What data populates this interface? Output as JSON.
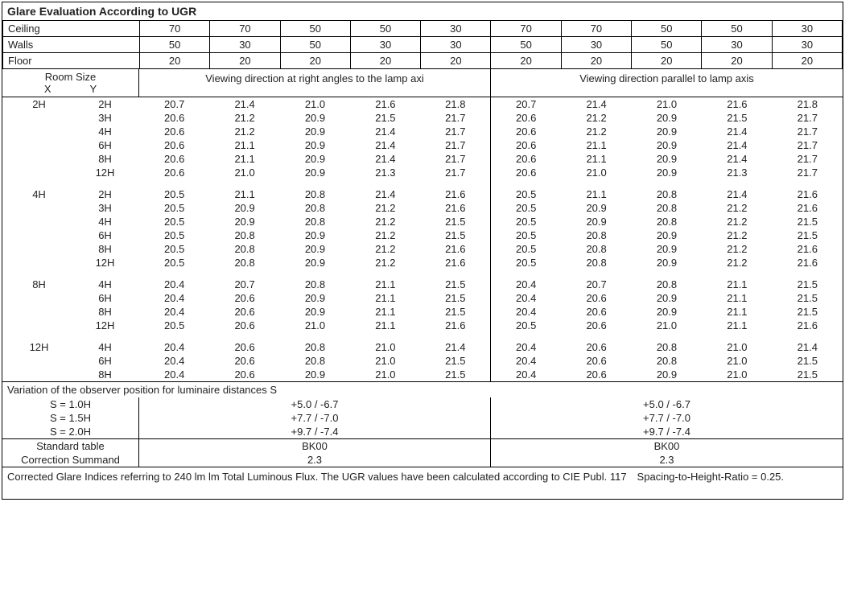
{
  "title": "Glare Evaluation According to UGR",
  "headers": {
    "rows": [
      {
        "label": "Ceiling",
        "vals": [
          "70",
          "70",
          "50",
          "50",
          "30",
          "70",
          "70",
          "50",
          "50",
          "30"
        ]
      },
      {
        "label": "Walls",
        "vals": [
          "50",
          "30",
          "50",
          "30",
          "30",
          "50",
          "30",
          "50",
          "30",
          "30"
        ]
      },
      {
        "label": "Floor",
        "vals": [
          "20",
          "20",
          "20",
          "20",
          "20",
          "20",
          "20",
          "20",
          "20",
          "20"
        ]
      }
    ]
  },
  "subheader": {
    "room_size_label": "Room Size",
    "x_label": "X",
    "y_label": "Y",
    "view1": "Viewing direction at right angles to the lamp axi",
    "view2": "Viewing direction parallel to lamp axis"
  },
  "groups": [
    {
      "x": "2H",
      "rows": [
        {
          "y": "2H",
          "a": [
            "20.7",
            "21.4",
            "21.0",
            "21.6",
            "21.8"
          ],
          "b": [
            "20.7",
            "21.4",
            "21.0",
            "21.6",
            "21.8"
          ]
        },
        {
          "y": "3H",
          "a": [
            "20.6",
            "21.2",
            "20.9",
            "21.5",
            "21.7"
          ],
          "b": [
            "20.6",
            "21.2",
            "20.9",
            "21.5",
            "21.7"
          ]
        },
        {
          "y": "4H",
          "a": [
            "20.6",
            "21.2",
            "20.9",
            "21.4",
            "21.7"
          ],
          "b": [
            "20.6",
            "21.2",
            "20.9",
            "21.4",
            "21.7"
          ]
        },
        {
          "y": "6H",
          "a": [
            "20.6",
            "21.1",
            "20.9",
            "21.4",
            "21.7"
          ],
          "b": [
            "20.6",
            "21.1",
            "20.9",
            "21.4",
            "21.7"
          ]
        },
        {
          "y": "8H",
          "a": [
            "20.6",
            "21.1",
            "20.9",
            "21.4",
            "21.7"
          ],
          "b": [
            "20.6",
            "21.1",
            "20.9",
            "21.4",
            "21.7"
          ]
        },
        {
          "y": "12H",
          "a": [
            "20.6",
            "21.0",
            "20.9",
            "21.3",
            "21.7"
          ],
          "b": [
            "20.6",
            "21.0",
            "20.9",
            "21.3",
            "21.7"
          ]
        }
      ]
    },
    {
      "x": "4H",
      "rows": [
        {
          "y": "2H",
          "a": [
            "20.5",
            "21.1",
            "20.8",
            "21.4",
            "21.6"
          ],
          "b": [
            "20.5",
            "21.1",
            "20.8",
            "21.4",
            "21.6"
          ]
        },
        {
          "y": "3H",
          "a": [
            "20.5",
            "20.9",
            "20.8",
            "21.2",
            "21.6"
          ],
          "b": [
            "20.5",
            "20.9",
            "20.8",
            "21.2",
            "21.6"
          ]
        },
        {
          "y": "4H",
          "a": [
            "20.5",
            "20.9",
            "20.8",
            "21.2",
            "21.5"
          ],
          "b": [
            "20.5",
            "20.9",
            "20.8",
            "21.2",
            "21.5"
          ]
        },
        {
          "y": "6H",
          "a": [
            "20.5",
            "20.8",
            "20.9",
            "21.2",
            "21.5"
          ],
          "b": [
            "20.5",
            "20.8",
            "20.9",
            "21.2",
            "21.5"
          ]
        },
        {
          "y": "8H",
          "a": [
            "20.5",
            "20.8",
            "20.9",
            "21.2",
            "21.6"
          ],
          "b": [
            "20.5",
            "20.8",
            "20.9",
            "21.2",
            "21.6"
          ]
        },
        {
          "y": "12H",
          "a": [
            "20.5",
            "20.8",
            "20.9",
            "21.2",
            "21.6"
          ],
          "b": [
            "20.5",
            "20.8",
            "20.9",
            "21.2",
            "21.6"
          ]
        }
      ]
    },
    {
      "x": "8H",
      "rows": [
        {
          "y": "4H",
          "a": [
            "20.4",
            "20.7",
            "20.8",
            "21.1",
            "21.5"
          ],
          "b": [
            "20.4",
            "20.7",
            "20.8",
            "21.1",
            "21.5"
          ]
        },
        {
          "y": "6H",
          "a": [
            "20.4",
            "20.6",
            "20.9",
            "21.1",
            "21.5"
          ],
          "b": [
            "20.4",
            "20.6",
            "20.9",
            "21.1",
            "21.5"
          ]
        },
        {
          "y": "8H",
          "a": [
            "20.4",
            "20.6",
            "20.9",
            "21.1",
            "21.5"
          ],
          "b": [
            "20.4",
            "20.6",
            "20.9",
            "21.1",
            "21.5"
          ]
        },
        {
          "y": "12H",
          "a": [
            "20.5",
            "20.6",
            "21.0",
            "21.1",
            "21.6"
          ],
          "b": [
            "20.5",
            "20.6",
            "21.0",
            "21.1",
            "21.6"
          ]
        }
      ]
    },
    {
      "x": "12H",
      "rows": [
        {
          "y": "4H",
          "a": [
            "20.4",
            "20.6",
            "20.8",
            "21.0",
            "21.4"
          ],
          "b": [
            "20.4",
            "20.6",
            "20.8",
            "21.0",
            "21.4"
          ]
        },
        {
          "y": "6H",
          "a": [
            "20.4",
            "20.6",
            "20.8",
            "21.0",
            "21.5"
          ],
          "b": [
            "20.4",
            "20.6",
            "20.8",
            "21.0",
            "21.5"
          ]
        },
        {
          "y": "8H",
          "a": [
            "20.4",
            "20.6",
            "20.9",
            "21.0",
            "21.5"
          ],
          "b": [
            "20.4",
            "20.6",
            "20.9",
            "21.0",
            "21.5"
          ]
        }
      ]
    }
  ],
  "variation": {
    "title": "Variation of the observer position for luminaire distances S",
    "rows": [
      {
        "s": "S = 1.0H",
        "a": "+5.0 / -6.7",
        "b": "+5.0 / -6.7"
      },
      {
        "s": "S = 1.5H",
        "a": "+7.7 / -7.0",
        "b": "+7.7 / -7.0"
      },
      {
        "s": "S = 2.0H",
        "a": "+9.7 / -7.4",
        "b": "+9.7 / -7.4"
      }
    ]
  },
  "standard": {
    "rows": [
      {
        "s": "Standard table",
        "a": "BK00",
        "b": "BK00"
      },
      {
        "s": "Correction Summand",
        "a": "2.3",
        "b": "2.3"
      }
    ]
  },
  "footnote": "Corrected Glare Indices referring to 240 lm lm Total Luminous Flux. The UGR values have been calculated according to CIE Publ. 117 Spacing-to-Height-Ratio = 0.25."
}
